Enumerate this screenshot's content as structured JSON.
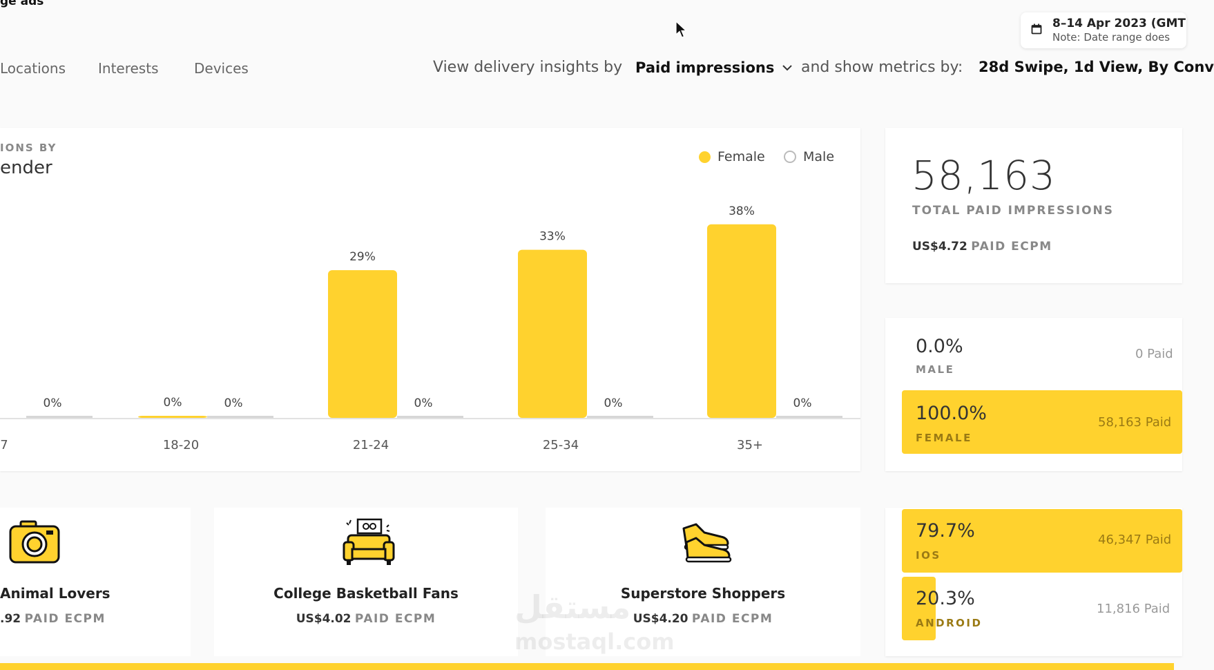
{
  "header": {
    "title": "ge ads",
    "date_range": "8–14 Apr 2023 (GMT",
    "date_note": "Note: Date range does"
  },
  "tabs": [
    {
      "label": "Locations"
    },
    {
      "label": "Interests"
    },
    {
      "label": "Devices"
    }
  ],
  "insights": {
    "view_label": "View delivery insights by",
    "view_value": "Paid impressions",
    "metrics_label": "and show metrics by:",
    "metrics_value": "28d Swipe, 1d View, By Conv"
  },
  "chart": {
    "eyebrow": "IONS BY",
    "title": "ender",
    "legend": {
      "female": "Female",
      "male": "Male"
    }
  },
  "chart_data": {
    "type": "bar",
    "categories": [
      "7",
      "18-20",
      "21-24",
      "25-34",
      "35+"
    ],
    "series": [
      {
        "name": "Female",
        "values": [
          null,
          0,
          29,
          33,
          38
        ],
        "color": "#ffd22e"
      },
      {
        "name": "Male",
        "values": [
          0,
          0,
          0,
          0,
          0
        ],
        "color": "#d6d6d6"
      }
    ],
    "data_labels": {
      "female": [
        "",
        "0%",
        "29%",
        "33%",
        "38%"
      ],
      "male": [
        "0%",
        "0%",
        "0%",
        "0%",
        "0%"
      ]
    },
    "ylim": [
      0,
      40
    ],
    "legend_position": "top-right",
    "grid": false
  },
  "totals": {
    "impressions": "58,163",
    "impressions_label": "TOTAL PAID IMPRESSIONS",
    "ecpm_value": "US$4.72",
    "ecpm_label": "PAID ECPM"
  },
  "gender": [
    {
      "pct": "0.0%",
      "label": "MALE",
      "paid": "0 Paid",
      "share": 0.0
    },
    {
      "pct": "100.0%",
      "label": "FEMALE",
      "paid": "58,163 Paid",
      "share": 1.0
    }
  ],
  "interests": [
    {
      "name": "Animal Lovers",
      "ecpm_value": ".92",
      "ecpm_label": "PAID ECPM",
      "icon": "camera-icon"
    },
    {
      "name": "College Basketball Fans",
      "ecpm_value": "US$4.02",
      "ecpm_label": "PAID ECPM",
      "icon": "couch-icon"
    },
    {
      "name": "Superstore Shoppers",
      "ecpm_value": "US$4.20",
      "ecpm_label": "PAID ECPM",
      "icon": "sneakers-icon"
    }
  ],
  "devices": [
    {
      "pct": "79.7%",
      "label": "IOS",
      "paid": "46,347 Paid",
      "share": 0.797
    },
    {
      "pct": "20.3%",
      "label": "ANDROID",
      "paid": "11,816 Paid",
      "share": 0.203
    }
  ],
  "watermark": {
    "arabic": "مستقل",
    "latin": "mostaql.com"
  },
  "colors": {
    "accent": "#ffd22e",
    "text": "#222222",
    "muted": "#888888"
  }
}
